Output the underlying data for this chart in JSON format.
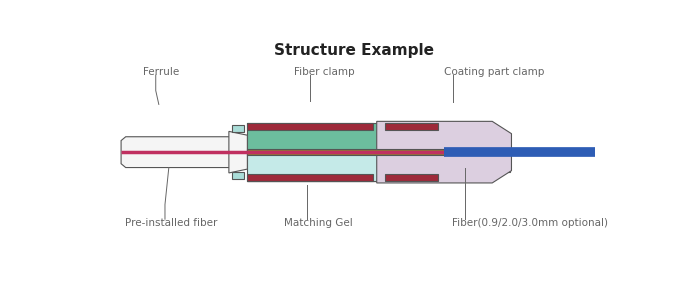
{
  "title": "Structure Example",
  "title_fontsize": 11,
  "title_fontweight": "bold",
  "background_color": "#ffffff",
  "label_fontsize": 7.5,
  "label_color": "#666666",
  "colors": {
    "ferrule_body": "#f5f5f5",
    "ferrule_outline": "#555555",
    "fiber_clamp_red": "#9e2a3a",
    "green_body": "#6cbd9e",
    "light_cyan": "#c5eae8",
    "pink_clamp": "#dccfe0",
    "matching_gel": "#8a7d30",
    "blue_fiber": "#2e5db5",
    "pink_fiber": "#c03060",
    "teal_tab": "#aaddd8",
    "dark_outline": "#555555",
    "white": "#ffffff"
  },
  "labels": {
    "ferrule": "Ferrule",
    "fiber_clamp": "Fiber clamp",
    "coating_clamp": "Coating part clamp",
    "pre_installed": "Pre-installed fiber",
    "matching_gel": "Matching Gel",
    "fiber_opt": "Fiber(0.9/2.0/3.0mm optional)"
  }
}
